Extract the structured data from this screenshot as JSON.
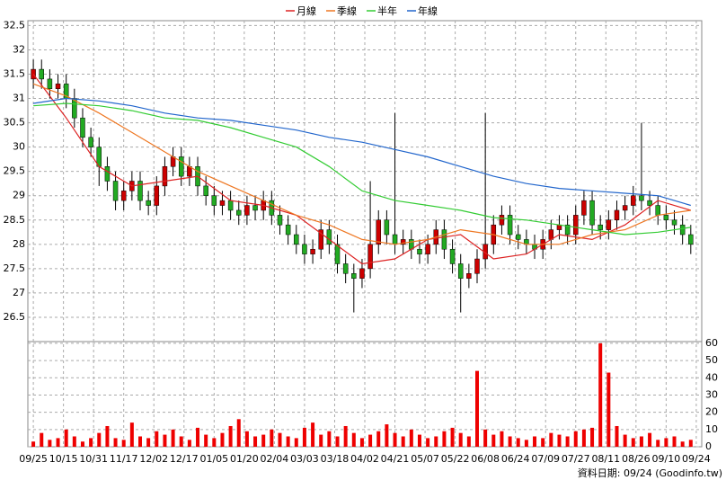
{
  "chart_data": [
    {
      "type": "candlestick",
      "up_color": "#cc0000",
      "down_color": "#22aa22",
      "wick_color": "#000000",
      "x": [
        0,
        3,
        6,
        9,
        12,
        15,
        18,
        21,
        24,
        27,
        30,
        33,
        36,
        39,
        42,
        45,
        48,
        51,
        54,
        57,
        60,
        63,
        66,
        69,
        72,
        75,
        78,
        81,
        84,
        87,
        90,
        93,
        96,
        99,
        102,
        105,
        108,
        111,
        114,
        117,
        120,
        123,
        126,
        129,
        132,
        135,
        138,
        141,
        144,
        147,
        150,
        153,
        156,
        159,
        162,
        165,
        168,
        171,
        174,
        177,
        180,
        183,
        186,
        189,
        192,
        195,
        198,
        201,
        204,
        207,
        210,
        213,
        216,
        219,
        222,
        225,
        228,
        231,
        234,
        237,
        240
      ],
      "open": [
        31.4,
        31.6,
        31.4,
        31.2,
        31.3,
        31.0,
        30.6,
        30.2,
        30.0,
        29.6,
        29.3,
        28.9,
        29.1,
        29.3,
        28.9,
        28.8,
        29.2,
        29.6,
        29.8,
        29.4,
        29.6,
        29.2,
        29.0,
        28.8,
        28.9,
        28.7,
        28.6,
        28.8,
        28.7,
        28.9,
        28.6,
        28.4,
        28.2,
        28.0,
        27.8,
        27.9,
        28.3,
        28.0,
        27.6,
        27.4,
        27.3,
        27.5,
        28.0,
        28.5,
        28.2,
        28.0,
        28.1,
        27.9,
        27.8,
        28.0,
        28.3,
        27.9,
        27.6,
        27.3,
        27.4,
        27.7,
        28.0,
        28.4,
        28.6,
        28.2,
        28.1,
        28.0,
        27.9,
        28.1,
        28.3,
        28.4,
        28.2,
        28.6,
        28.9,
        28.4,
        28.3,
        28.5,
        28.7,
        28.8,
        29.0,
        28.9,
        28.8,
        28.6,
        28.5,
        28.4,
        28.2
      ],
      "high": [
        31.8,
        31.8,
        31.6,
        31.5,
        31.5,
        31.2,
        30.8,
        30.4,
        30.2,
        29.8,
        29.5,
        29.3,
        29.5,
        29.5,
        29.1,
        29.4,
        29.8,
        30.0,
        30.0,
        29.8,
        29.8,
        29.4,
        29.2,
        29.1,
        29.1,
        28.9,
        29.0,
        29.0,
        29.1,
        29.1,
        28.8,
        28.6,
        28.4,
        28.2,
        28.1,
        28.5,
        28.5,
        28.2,
        27.8,
        27.6,
        27.7,
        29.3,
        28.7,
        28.7,
        30.7,
        28.3,
        28.3,
        28.1,
        28.2,
        28.5,
        28.5,
        28.1,
        27.8,
        27.6,
        27.9,
        30.7,
        28.6,
        28.8,
        28.8,
        28.4,
        28.3,
        28.2,
        28.3,
        28.5,
        28.6,
        28.6,
        28.8,
        29.1,
        29.1,
        28.6,
        28.7,
        28.9,
        29.0,
        29.2,
        30.5,
        29.1,
        29.0,
        28.8,
        28.7,
        28.6,
        28.4
      ],
      "low": [
        31.2,
        31.2,
        31.0,
        31.0,
        30.8,
        30.4,
        30.0,
        29.8,
        29.2,
        29.1,
        28.7,
        28.7,
        28.9,
        28.7,
        28.6,
        28.6,
        29.0,
        29.4,
        29.2,
        29.2,
        29.0,
        28.8,
        28.6,
        28.6,
        28.5,
        28.4,
        28.4,
        28.5,
        28.5,
        28.4,
        28.2,
        28.0,
        27.8,
        27.6,
        27.6,
        27.7,
        27.8,
        27.4,
        27.2,
        26.6,
        27.1,
        27.3,
        27.8,
        28.0,
        27.8,
        27.8,
        27.7,
        27.6,
        27.6,
        27.8,
        27.7,
        27.4,
        26.6,
        27.1,
        27.2,
        27.5,
        27.8,
        28.2,
        28.0,
        27.9,
        27.8,
        27.7,
        27.7,
        27.9,
        28.1,
        28.0,
        28.0,
        28.4,
        28.2,
        28.1,
        28.1,
        28.3,
        28.5,
        28.6,
        28.7,
        28.6,
        28.4,
        28.3,
        28.2,
        28.0,
        27.8
      ],
      "close": [
        31.6,
        31.4,
        31.2,
        31.3,
        31.0,
        30.6,
        30.2,
        30.0,
        29.6,
        29.3,
        28.9,
        29.1,
        29.3,
        28.9,
        28.8,
        29.2,
        29.6,
        29.8,
        29.4,
        29.6,
        29.2,
        29.0,
        28.8,
        28.9,
        28.7,
        28.6,
        28.8,
        28.7,
        28.9,
        28.6,
        28.4,
        28.2,
        28.0,
        27.8,
        27.9,
        28.3,
        28.0,
        27.6,
        27.4,
        27.3,
        27.5,
        28.0,
        28.5,
        28.2,
        28.0,
        28.1,
        27.9,
        27.8,
        28.0,
        28.3,
        27.9,
        27.6,
        27.3,
        27.4,
        27.7,
        28.0,
        28.4,
        28.6,
        28.2,
        28.1,
        28.0,
        27.9,
        28.1,
        28.3,
        28.4,
        28.2,
        28.6,
        28.9,
        28.4,
        28.3,
        28.5,
        28.7,
        28.8,
        29.0,
        28.9,
        28.8,
        28.6,
        28.5,
        28.4,
        28.2,
        28.0
      ],
      "series": [
        {
          "name": "月線",
          "color": "#dd2222",
          "x": [
            0,
            12,
            24,
            36,
            48,
            60,
            72,
            84,
            96,
            108,
            120,
            132,
            144,
            156,
            168,
            180,
            192,
            204,
            216,
            228,
            240
          ],
          "values": [
            31.5,
            30.6,
            29.6,
            29.2,
            29.3,
            29.4,
            28.9,
            28.8,
            28.6,
            28.1,
            27.6,
            27.7,
            28.1,
            28.2,
            27.7,
            27.8,
            28.2,
            28.1,
            28.4,
            28.9,
            28.7
          ]
        },
        {
          "name": "季線",
          "color": "#ee7722",
          "x": [
            0,
            12,
            24,
            36,
            48,
            60,
            72,
            84,
            96,
            108,
            120,
            132,
            144,
            156,
            168,
            180,
            192,
            204,
            216,
            228,
            240
          ],
          "values": [
            31.3,
            31.05,
            30.7,
            30.3,
            29.9,
            29.5,
            29.2,
            28.9,
            28.6,
            28.4,
            28.1,
            28.0,
            28.1,
            28.3,
            28.2,
            28.0,
            28.0,
            28.2,
            28.3,
            28.6,
            28.7
          ]
        },
        {
          "name": "半年",
          "color": "#33cc33",
          "x": [
            0,
            12,
            24,
            36,
            48,
            60,
            72,
            84,
            96,
            108,
            120,
            132,
            144,
            156,
            168,
            180,
            192,
            204,
            216,
            228,
            240
          ],
          "values": [
            30.85,
            30.9,
            30.85,
            30.75,
            30.6,
            30.55,
            30.4,
            30.2,
            30.0,
            29.6,
            29.1,
            28.9,
            28.8,
            28.7,
            28.55,
            28.5,
            28.4,
            28.3,
            28.2,
            28.25,
            28.35
          ]
        },
        {
          "name": "年線",
          "color": "#2266cc",
          "x": [
            0,
            12,
            24,
            36,
            48,
            60,
            72,
            84,
            96,
            108,
            120,
            132,
            144,
            156,
            168,
            180,
            192,
            204,
            216,
            228,
            240
          ],
          "values": [
            30.9,
            31.0,
            30.95,
            30.85,
            30.7,
            30.6,
            30.55,
            30.45,
            30.35,
            30.2,
            30.1,
            29.95,
            29.8,
            29.6,
            29.4,
            29.25,
            29.15,
            29.1,
            29.05,
            29.0,
            28.8
          ]
        }
      ],
      "xlim": [
        -2,
        244
      ],
      "ylim": [
        26,
        32.6
      ],
      "yticks": [
        26.5,
        27,
        27.5,
        28,
        28.5,
        29,
        29.5,
        30,
        30.5,
        31,
        31.5,
        32,
        32.5
      ],
      "grid": true
    },
    {
      "type": "bar",
      "color": "#ee0000",
      "x": [
        0,
        3,
        6,
        9,
        12,
        15,
        18,
        21,
        24,
        27,
        30,
        33,
        36,
        39,
        42,
        45,
        48,
        51,
        54,
        57,
        60,
        63,
        66,
        69,
        72,
        75,
        78,
        81,
        84,
        87,
        90,
        93,
        96,
        99,
        102,
        105,
        108,
        111,
        114,
        117,
        120,
        123,
        126,
        129,
        132,
        135,
        138,
        141,
        144,
        147,
        150,
        153,
        156,
        159,
        162,
        165,
        168,
        171,
        174,
        177,
        180,
        183,
        186,
        189,
        192,
        195,
        198,
        201,
        204,
        207,
        210,
        213,
        216,
        219,
        222,
        225,
        228,
        231,
        234,
        237,
        240
      ],
      "values": [
        3,
        8,
        4,
        5,
        10,
        6,
        3,
        5,
        8,
        12,
        5,
        4,
        14,
        6,
        5,
        9,
        7,
        10,
        6,
        4,
        11,
        7,
        5,
        8,
        12,
        16,
        9,
        6,
        7,
        10,
        8,
        6,
        5,
        11,
        14,
        7,
        9,
        6,
        12,
        8,
        5,
        7,
        9,
        13,
        8,
        6,
        10,
        7,
        5,
        6,
        9,
        11,
        8,
        6,
        44,
        10,
        7,
        9,
        6,
        5,
        4,
        6,
        5,
        8,
        7,
        6,
        9,
        10,
        11,
        60,
        43,
        12,
        7,
        5,
        6,
        8,
        4,
        5,
        6,
        3,
        4
      ],
      "xlim": [
        -2,
        244
      ],
      "xticks": [
        {
          "value": 0,
          "label": "09/25"
        },
        {
          "value": 11,
          "label": "10/15"
        },
        {
          "value": 22,
          "label": "10/31"
        },
        {
          "value": 33,
          "label": "11/17"
        },
        {
          "value": 44,
          "label": "12/02"
        },
        {
          "value": 55,
          "label": "12/17"
        },
        {
          "value": 66,
          "label": "01/05"
        },
        {
          "value": 77,
          "label": "01/20"
        },
        {
          "value": 88,
          "label": "02/04"
        },
        {
          "value": 99,
          "label": "03/03"
        },
        {
          "value": 110,
          "label": "03/18"
        },
        {
          "value": 121,
          "label": "04/02"
        },
        {
          "value": 132,
          "label": "04/21"
        },
        {
          "value": 143,
          "label": "05/07"
        },
        {
          "value": 154,
          "label": "05/22"
        },
        {
          "value": 165,
          "label": "06/08"
        },
        {
          "value": 176,
          "label": "06/24"
        },
        {
          "value": 187,
          "label": "07/09"
        },
        {
          "value": 198,
          "label": "07/27"
        },
        {
          "value": 209,
          "label": "08/11"
        },
        {
          "value": 220,
          "label": "08/26"
        },
        {
          "value": 231,
          "label": "09/10"
        },
        {
          "value": 242,
          "label": "09/24"
        }
      ],
      "ylim": [
        0,
        61
      ],
      "yticks": [
        0,
        10,
        20,
        30,
        40,
        50,
        60
      ],
      "grid": true
    }
  ],
  "footer": "資料日期: 09/24 (Goodinfo.tw)"
}
